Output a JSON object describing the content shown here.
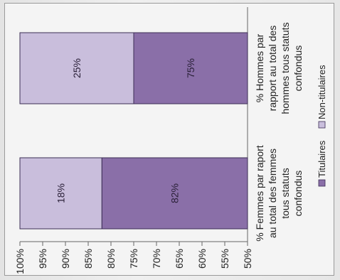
{
  "chart_data": {
    "type": "bar",
    "stacked": true,
    "orientation": "rotated -90deg (bars appear horizontal)",
    "categories": [
      "% Femmes par raport au total des femmes tous statuts confondus",
      "% Hommes par rapport au total des hommes tous statuts confondus"
    ],
    "category_lines": [
      [
        "% Femmes par raport",
        "au total des femmes",
        "tous statuts",
        "confondus"
      ],
      [
        "% Hommes par",
        "rapport au total des",
        "hommes tous statuts",
        "confondus"
      ]
    ],
    "series": [
      {
        "name": "Titulaires",
        "values": [
          82,
          75
        ],
        "labels": [
          "82%",
          "75%"
        ],
        "color": "#8a6fa8"
      },
      {
        "name": "Non-titulaires",
        "values": [
          18,
          25
        ],
        "labels": [
          "18%",
          "25%"
        ],
        "color": "#c9bedc"
      }
    ],
    "ylim": [
      50,
      100
    ],
    "yticks": [
      "50%",
      "55%",
      "60%",
      "65%",
      "70%",
      "75%",
      "80%",
      "85%",
      "90%",
      "95%",
      "100%"
    ],
    "ytick_values": [
      50,
      55,
      60,
      65,
      70,
      75,
      80,
      85,
      90,
      95,
      100
    ],
    "title": "",
    "xlabel": "",
    "ylabel": "",
    "grid": false,
    "legend_position": "bottom"
  }
}
